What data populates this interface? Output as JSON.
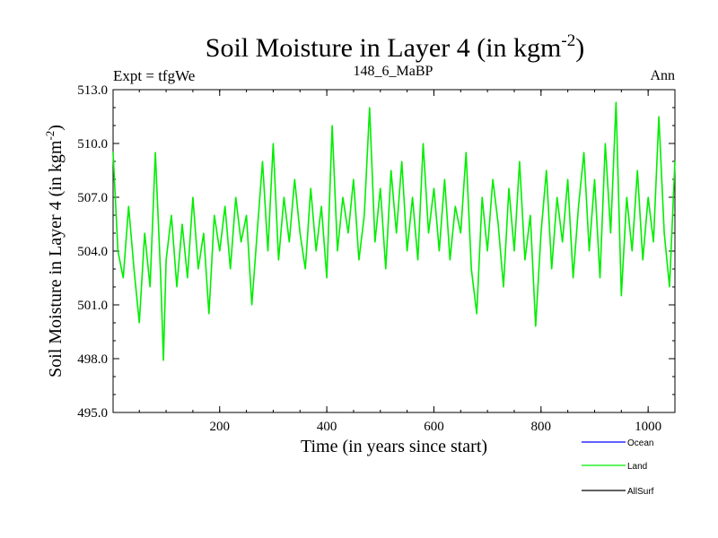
{
  "chart_data": {
    "type": "line",
    "title": "Soil Moisture in Layer 4 (in kgm",
    "title_exponent": "-2",
    "title_suffix": ")",
    "subtitle_left": "Expt = tfgWe",
    "subtitle_center": "148_6_MaBP",
    "subtitle_right": "Ann",
    "xlabel": "Time (in years since start)",
    "ylabel": "Soil Moisture in Layer 4 (in kgm",
    "ylabel_exponent": "-2",
    "ylabel_suffix": ")",
    "xlim": [
      1,
      1050
    ],
    "ylim": [
      495.0,
      513.0
    ],
    "xticks": [
      200,
      400,
      600,
      800,
      1000
    ],
    "xtick_labels": [
      "200",
      "400",
      "600",
      "800",
      "1000"
    ],
    "yticks": [
      495.0,
      498.0,
      501.0,
      504.0,
      507.0,
      510.0,
      513.0
    ],
    "ytick_labels": [
      "495.0",
      "498.0",
      "501.0",
      "504.0",
      "507.0",
      "510.0",
      "513.0"
    ],
    "grid": false,
    "legend_position": "bottom-right",
    "series": [
      {
        "name": "Ocean",
        "color": "#0000ff",
        "values": []
      },
      {
        "name": "Land",
        "color": "#00ee00",
        "x": [
          1,
          10,
          20,
          30,
          40,
          50,
          60,
          70,
          80,
          90,
          95,
          100,
          110,
          120,
          130,
          140,
          150,
          160,
          170,
          180,
          190,
          200,
          210,
          220,
          230,
          240,
          250,
          260,
          270,
          280,
          290,
          300,
          310,
          320,
          330,
          340,
          350,
          360,
          370,
          380,
          390,
          400,
          410,
          420,
          430,
          440,
          450,
          460,
          470,
          480,
          490,
          500,
          510,
          520,
          530,
          540,
          550,
          560,
          570,
          580,
          590,
          600,
          610,
          620,
          630,
          640,
          650,
          660,
          670,
          680,
          690,
          700,
          710,
          720,
          730,
          740,
          750,
          760,
          770,
          780,
          790,
          800,
          810,
          820,
          830,
          840,
          850,
          860,
          870,
          880,
          890,
          900,
          910,
          920,
          930,
          940,
          950,
          960,
          970,
          980,
          990,
          1000,
          1010,
          1020,
          1030,
          1040,
          1050
        ],
        "values": [
          509.5,
          504.0,
          502.5,
          506.5,
          503.0,
          500.0,
          505.0,
          502.0,
          509.5,
          502.5,
          497.9,
          503.5,
          506.0,
          502.0,
          505.5,
          502.5,
          507.0,
          503.0,
          505.0,
          500.5,
          506.0,
          504.0,
          506.5,
          503.0,
          507.0,
          504.5,
          506.0,
          501.0,
          505.0,
          509.0,
          504.0,
          510.0,
          503.5,
          507.0,
          504.5,
          508.0,
          505.0,
          503.0,
          507.5,
          504.0,
          506.5,
          502.5,
          511.0,
          504.0,
          507.0,
          505.0,
          508.0,
          503.5,
          506.0,
          512.0,
          504.5,
          507.5,
          503.0,
          508.5,
          505.0,
          509.0,
          504.0,
          507.0,
          503.5,
          510.0,
          505.0,
          507.5,
          504.0,
          508.0,
          503.5,
          506.5,
          505.0,
          509.5,
          503.0,
          500.5,
          507.0,
          504.0,
          508.0,
          505.5,
          502.0,
          507.5,
          504.0,
          509.0,
          503.5,
          506.0,
          499.8,
          505.0,
          508.5,
          503.0,
          507.0,
          504.5,
          508.0,
          502.5,
          506.5,
          509.5,
          504.0,
          508.0,
          502.5,
          510.0,
          505.0,
          512.3,
          501.5,
          507.0,
          504.0,
          508.5,
          503.5,
          507.0,
          504.5,
          511.5,
          505.0,
          502.0,
          509.0
        ]
      },
      {
        "name": "AllSurf",
        "color": "#000000",
        "values": []
      }
    ]
  }
}
